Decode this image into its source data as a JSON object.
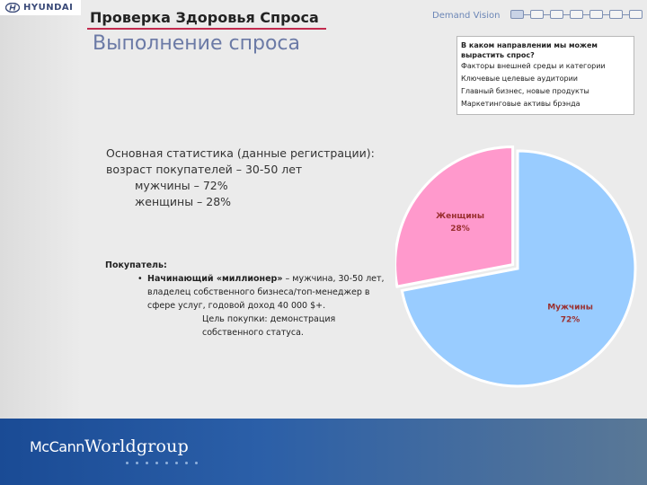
{
  "brand": {
    "logo_text": "HYUNDAI",
    "demand_vision_label": "Demand Vision"
  },
  "header": {
    "title": "Проверка Здоровья Спроса",
    "page_title": "Выполнение спроса"
  },
  "progress": {
    "steps": 7,
    "active_step": 1
  },
  "question_box": {
    "question": "В каком направлении мы можем вырастить спрос?",
    "items": [
      "Факторы внешней среды и категории",
      "Ключевые целевые аудитории",
      "Главный бизнес, новые продукты",
      "Маркетинговые активы брэнда"
    ]
  },
  "stats": {
    "line1": "Основная статистика (данные регистрации):",
    "line2": "возраст покупателей – 30-50 лет",
    "line3": "мужчины – 72%",
    "line4": "женщины – 28%"
  },
  "buyer": {
    "heading": "Покупатель:",
    "bullet": "•",
    "type_bold": "Начинающий «миллионер»",
    "description": " – мужчина, 30-50 лет, владелец собственного бизнеса/топ-менеджер в сфере услуг, годовой доход 40 000 $+.",
    "goal": "Цель покупки: демонстрация собственного статуса."
  },
  "chart_data": {
    "type": "pie",
    "categories": [
      "Мужчины",
      "Женщины"
    ],
    "values": [
      72,
      28
    ],
    "value_labels": [
      "72%",
      "28%"
    ],
    "colors": [
      "#99ccff",
      "#ff99cc"
    ],
    "exploded": "Женщины"
  },
  "footer": {
    "logo_prefix": "McCann",
    "logo_main": "Worldgroup"
  }
}
